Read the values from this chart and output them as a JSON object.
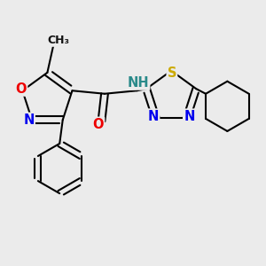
{
  "bg_color": "#ebebeb",
  "bond_color": "#000000",
  "bond_lw": 1.5,
  "atom_colors": {
    "N": "#0000ee",
    "O": "#ee0000",
    "S": "#ccaa00",
    "H": "#2a8a8a"
  },
  "font_size": 10.5,
  "dbo": 0.055
}
